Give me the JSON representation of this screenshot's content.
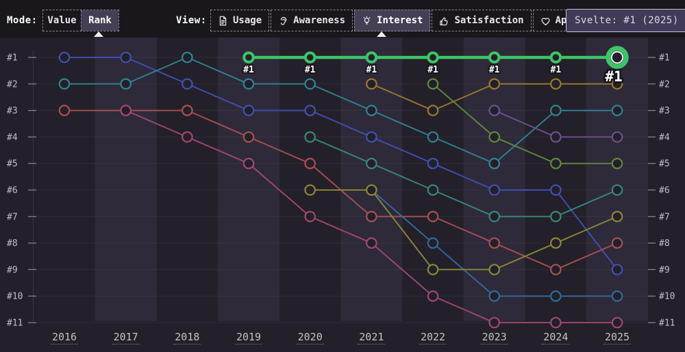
{
  "header": {
    "mode_label": "Mode:",
    "modes": [
      {
        "label": "Value",
        "selected": false
      },
      {
        "label": "Rank",
        "selected": true
      }
    ],
    "view_label": "View:",
    "views": [
      {
        "label": "Usage",
        "icon": "document-icon",
        "selected": false
      },
      {
        "label": "Awareness",
        "icon": "ear-icon",
        "selected": false
      },
      {
        "label": "Interest",
        "icon": "lightbulb-icon",
        "selected": true
      },
      {
        "label": "Satisfaction",
        "icon": "thumbs-up-icon",
        "selected": false
      },
      {
        "label": "Appreciation",
        "icon": "heart-icon",
        "selected": false
      }
    ]
  },
  "tooltip": {
    "text": "Svelte: #1 (2025)"
  },
  "chart_data": {
    "type": "line",
    "subtype": "bump-rank",
    "x": [
      "2016",
      "2017",
      "2018",
      "2019",
      "2020",
      "2021",
      "2022",
      "2023",
      "2024",
      "2025"
    ],
    "y_axis": {
      "labels": [
        "#1",
        "#2",
        "#3",
        "#4",
        "#5",
        "#6",
        "#7",
        "#8",
        "#9",
        "#10",
        "#11"
      ],
      "min": 1,
      "max": 11,
      "inverted": true,
      "grid": true
    },
    "highlighted_series": "svelte",
    "highlight_point_label": "#1",
    "highlight_color": "#3cc568",
    "series": [
      {
        "id": "indigo",
        "color": "#4150b5",
        "ranks": [
          1,
          1,
          2,
          3,
          3,
          4,
          5,
          6,
          6,
          9
        ]
      },
      {
        "id": "teal",
        "color": "#2f8495",
        "ranks": [
          2,
          2,
          1,
          2,
          2,
          3,
          4,
          5,
          3,
          3
        ]
      },
      {
        "id": "red",
        "color": "#a95052",
        "ranks": [
          3,
          3,
          3,
          4,
          5,
          7,
          7,
          8,
          9,
          8
        ]
      },
      {
        "id": "rose",
        "color": "#a34677",
        "ranks": [
          null,
          3,
          4,
          5,
          7,
          8,
          10,
          11,
          11,
          11
        ]
      },
      {
        "id": "teal-2",
        "color": "#38897f",
        "ranks": [
          null,
          null,
          null,
          null,
          4,
          5,
          6,
          7,
          7,
          6
        ]
      },
      {
        "id": "steel-blue",
        "color": "#336a9e",
        "ranks": [
          null,
          null,
          null,
          null,
          null,
          6,
          8,
          10,
          10,
          10
        ]
      },
      {
        "id": "olive",
        "color": "#8d8838",
        "ranks": [
          null,
          null,
          null,
          null,
          6,
          6,
          9,
          9,
          8,
          7
        ]
      },
      {
        "id": "amber",
        "color": "#997a2e",
        "ranks": [
          null,
          null,
          null,
          null,
          null,
          2,
          3,
          2,
          2,
          2
        ]
      },
      {
        "id": "green",
        "color": "#5f8b3e",
        "ranks": [
          null,
          null,
          null,
          null,
          null,
          null,
          2,
          4,
          5,
          5
        ]
      },
      {
        "id": "purple",
        "color": "#6e5191",
        "ranks": [
          null,
          null,
          null,
          null,
          null,
          null,
          null,
          3,
          4,
          4
        ]
      },
      {
        "id": "svelte",
        "color": "#3cc568",
        "ranks": [
          null,
          null,
          null,
          1,
          1,
          1,
          1,
          1,
          1,
          1
        ]
      }
    ]
  }
}
